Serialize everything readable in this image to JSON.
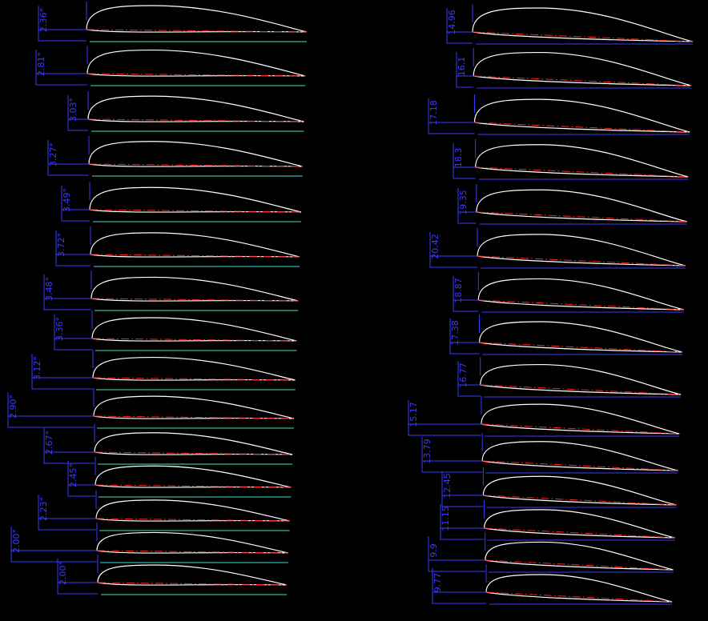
{
  "left_sections": [
    {
      "label": "2.36°"
    },
    {
      "label": "2.81°"
    },
    {
      "label": "3.03°"
    },
    {
      "label": "3.27°"
    },
    {
      "label": "3.49°"
    },
    {
      "label": "3.72°"
    },
    {
      "label": "3.48°"
    },
    {
      "label": "3.36°"
    },
    {
      "label": "3.12°"
    },
    {
      "label": "2.90°"
    },
    {
      "label": "2.67°"
    },
    {
      "label": "2.45°"
    },
    {
      "label": "2.23°"
    },
    {
      "label": "2.00°"
    },
    {
      "label": "2.00°"
    }
  ],
  "right_sections": [
    {
      "label": "14.96"
    },
    {
      "label": "16.1"
    },
    {
      "label": "17.18"
    },
    {
      "label": "18.3"
    },
    {
      "label": "19.35"
    },
    {
      "label": "20.42"
    },
    {
      "label": "18.87"
    },
    {
      "label": "17.38"
    },
    {
      "label": "16.77"
    },
    {
      "label": "15.17"
    },
    {
      "label": "13.79"
    },
    {
      "label": "12.45"
    },
    {
      "label": "11.15"
    },
    {
      "label": "9.9"
    },
    {
      "label": "9.77"
    }
  ]
}
